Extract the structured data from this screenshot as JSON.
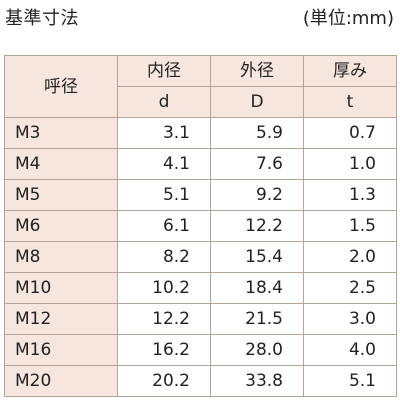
{
  "header": {
    "title": "基準寸法",
    "unit": "(単位:mm)"
  },
  "table": {
    "columns": [
      {
        "label": "呼径",
        "symbol": ""
      },
      {
        "label": "内径",
        "symbol": "d"
      },
      {
        "label": "外径",
        "symbol": "D"
      },
      {
        "label": "厚み",
        "symbol": "t"
      }
    ],
    "rows": [
      {
        "size": "M3",
        "d": "3.1",
        "D": "5.9",
        "t": "0.7"
      },
      {
        "size": "M4",
        "d": "4.1",
        "D": "7.6",
        "t": "1.0"
      },
      {
        "size": "M5",
        "d": "5.1",
        "D": "9.2",
        "t": "1.3"
      },
      {
        "size": "M6",
        "d": "6.1",
        "D": "12.2",
        "t": "1.5"
      },
      {
        "size": "M8",
        "d": "8.2",
        "D": "15.4",
        "t": "2.0"
      },
      {
        "size": "M10",
        "d": "10.2",
        "D": "18.4",
        "t": "2.5"
      },
      {
        "size": "M12",
        "d": "12.2",
        "D": "21.5",
        "t": "3.0"
      },
      {
        "size": "M16",
        "d": "16.2",
        "D": "28.0",
        "t": "4.0"
      },
      {
        "size": "M20",
        "d": "20.2",
        "D": "33.8",
        "t": "5.1"
      }
    ]
  },
  "colors": {
    "header_bg": "#f7e6dd",
    "border": "#b5a39a",
    "text": "#222222"
  }
}
